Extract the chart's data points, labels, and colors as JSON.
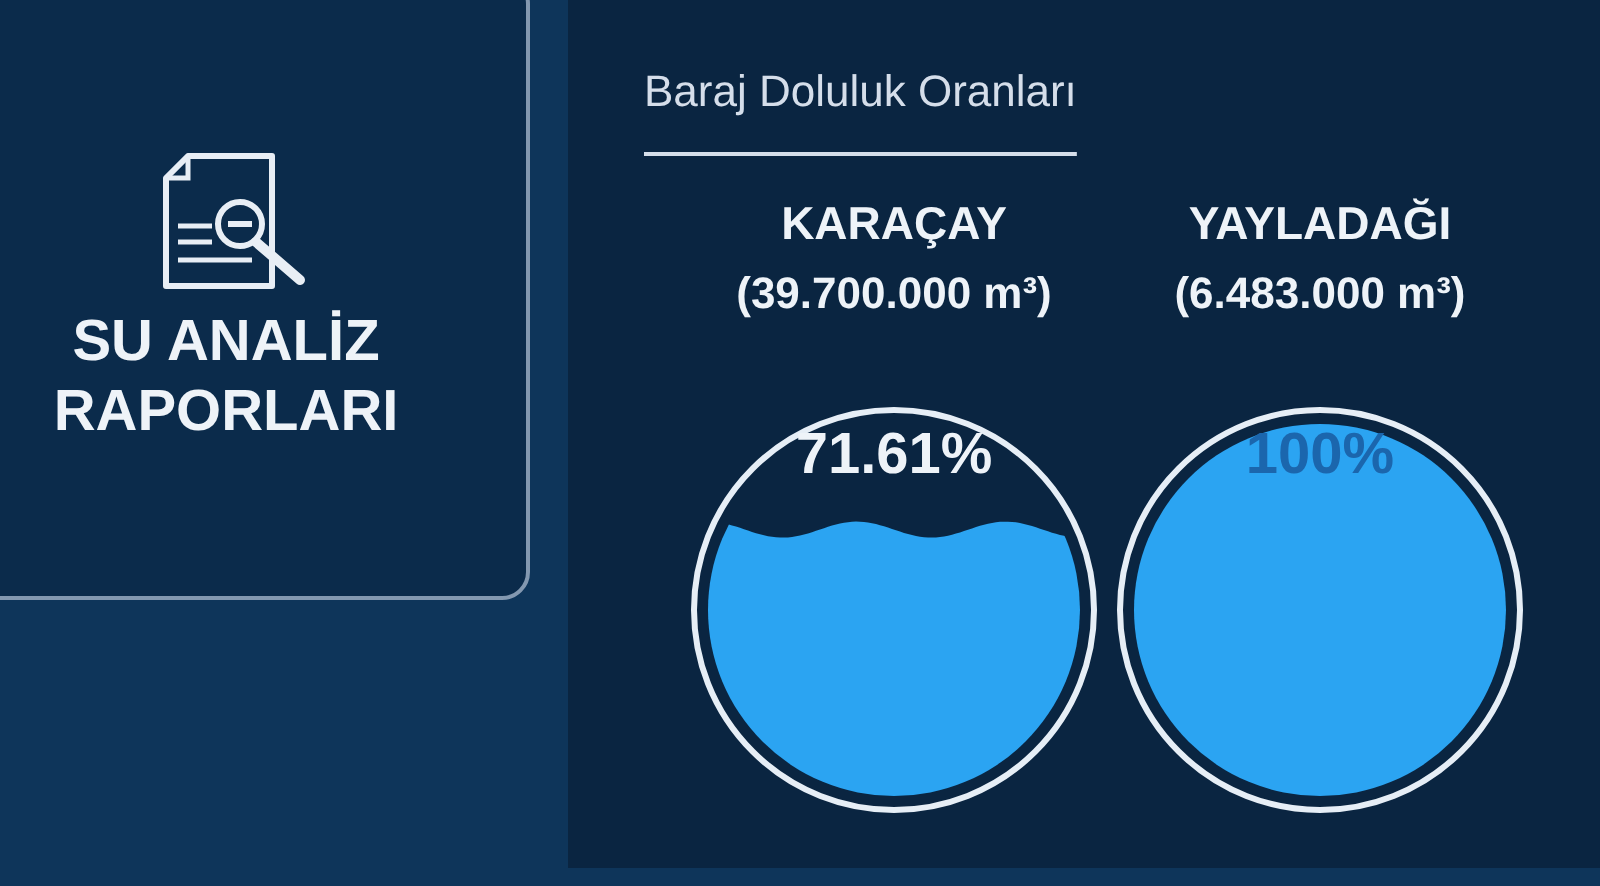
{
  "chart_data": [
    {
      "type": "other",
      "title": "SU ANALİZ RAPORLARI"
    },
    {
      "type": "other",
      "title": "Baraj Doluluk Oranları",
      "categories": [
        "KARAÇAY",
        "YAYLADAĞI"
      ],
      "values": [
        71.61,
        100
      ],
      "value_labels": [
        "71.61%",
        "100%"
      ],
      "color": "#2ba4f2",
      "annotations": [
        {
          "text": "(39.700.000 m³)",
          "x": "KARAÇAY"
        },
        {
          "text": "(6.483.000 m³)",
          "x": "YAYLADAĞI"
        }
      ]
    }
  ]
}
